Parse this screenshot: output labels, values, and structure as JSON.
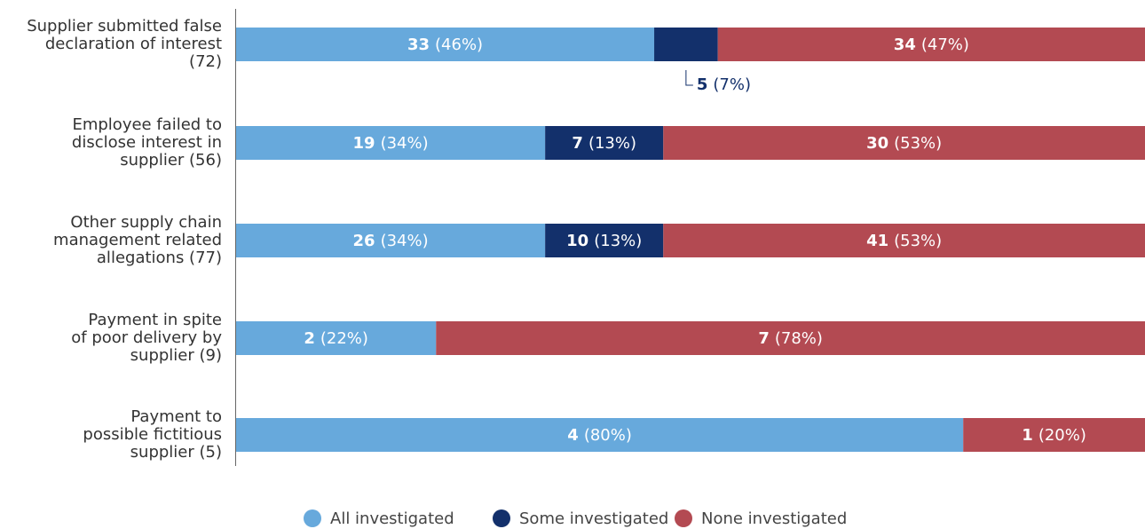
{
  "chart_data": {
    "type": "stacked-bar-100",
    "categories": [
      [
        "Supplier submitted false",
        "declaration of interest",
        "(72)"
      ],
      [
        "Employee failed to",
        "disclose interest in",
        "supplier (56)"
      ],
      [
        "Other supply chain",
        "management related",
        "allegations (77)"
      ],
      [
        "Payment in spite",
        "of poor delivery by",
        "supplier (9)"
      ],
      [
        "Payment to",
        "possible fictitious",
        "supplier (5)"
      ]
    ],
    "series": [
      {
        "name": "All investigated",
        "color": "#67a9dc",
        "values": [
          46,
          34,
          34,
          22,
          80
        ],
        "counts": [
          33,
          19,
          26,
          2,
          4
        ],
        "value_labels": [
          "(46%)",
          "(34%)",
          "(34%)",
          "(22%)",
          "(80%)"
        ]
      },
      {
        "name": "Some investigated",
        "color": "#13306b",
        "values": [
          7,
          13,
          13,
          null,
          null
        ],
        "counts": [
          5,
          7,
          10,
          null,
          null
        ],
        "value_labels": [
          "(7%)",
          "(13%)",
          "(13%)",
          null,
          null
        ]
      },
      {
        "name": "None investigated",
        "color": "#b34a52",
        "values": [
          47,
          53,
          53,
          78,
          20
        ],
        "counts": [
          34,
          30,
          41,
          7,
          1
        ],
        "value_labels": [
          "(47%)",
          "(53%)",
          "(53%)",
          "(78%)",
          "(20%)"
        ]
      }
    ],
    "xlim": [
      0,
      100
    ]
  }
}
